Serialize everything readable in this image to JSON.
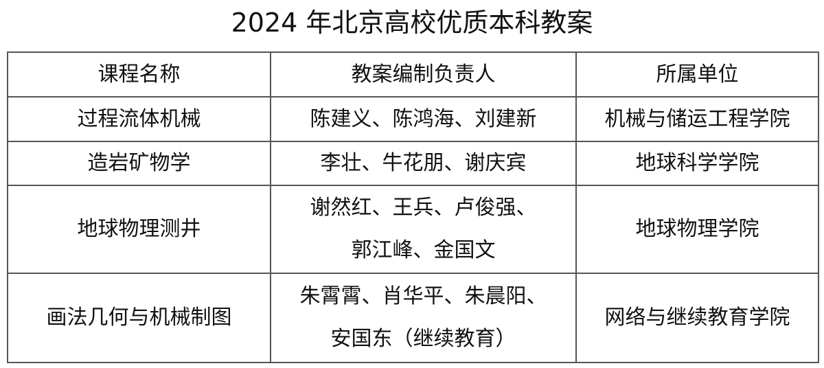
{
  "title": "2024 年北京高校优质本科教案",
  "headers": [
    "课程名称",
    "教案编制负责人",
    "所属单位"
  ],
  "rows": [
    {
      "course": "过程流体机械",
      "leaders": [
        "陈建义、陈鸿海、刘建新"
      ],
      "unit": "机械与储运工程学院"
    },
    {
      "course": "造岩矿物学",
      "leaders": [
        "李壮、牛花朋、谢庆宾"
      ],
      "unit": "地球科学学院"
    },
    {
      "course": "地球物理测井",
      "leaders": [
        "谢然红、王兵、卢俊强、",
        "郭江峰、金国文"
      ],
      "unit": "地球物理学院"
    },
    {
      "course": "画法几何与机械制图",
      "leaders": [
        "朱霄霄、肖华平、朱晨阳、",
        "安国东（继续教育）"
      ],
      "unit": "网络与继续教育学院"
    }
  ]
}
